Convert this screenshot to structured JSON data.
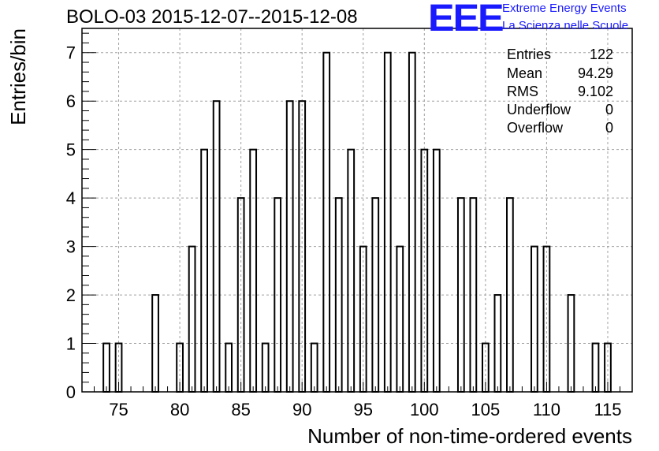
{
  "title": "BOLO-03 2015-12-07--2015-12-08",
  "logo": {
    "mark": "EEE",
    "line1": "Extreme Energy Events",
    "line2": "La Scienza nelle Scuole",
    "color": "#1a1aff"
  },
  "stats": [
    {
      "label": "Entries",
      "value": "122"
    },
    {
      "label": "Mean",
      "value": "94.29"
    },
    {
      "label": "RMS",
      "value": "9.102"
    },
    {
      "label": "Underflow",
      "value": "0"
    },
    {
      "label": "Overflow",
      "value": "0"
    }
  ],
  "chart_data": {
    "type": "bar",
    "title": "BOLO-03 2015-12-07--2015-12-08",
    "xlabel": "Number of non-time-ordered events",
    "ylabel": "Entries/bin",
    "xlim": [
      72,
      117
    ],
    "ylim": [
      0,
      7.5
    ],
    "x_ticks": [
      75,
      80,
      85,
      90,
      95,
      100,
      105,
      110,
      115
    ],
    "y_ticks": [
      0,
      1,
      2,
      3,
      4,
      5,
      6,
      7
    ],
    "grid": true,
    "bins": [
      {
        "x": 74,
        "value": 1
      },
      {
        "x": 75,
        "value": 1
      },
      {
        "x": 78,
        "value": 2
      },
      {
        "x": 80,
        "value": 1
      },
      {
        "x": 81,
        "value": 3
      },
      {
        "x": 82,
        "value": 5
      },
      {
        "x": 83,
        "value": 6
      },
      {
        "x": 84,
        "value": 1
      },
      {
        "x": 85,
        "value": 4
      },
      {
        "x": 86,
        "value": 5
      },
      {
        "x": 87,
        "value": 1
      },
      {
        "x": 88,
        "value": 4
      },
      {
        "x": 89,
        "value": 6
      },
      {
        "x": 90,
        "value": 6
      },
      {
        "x": 91,
        "value": 1
      },
      {
        "x": 92,
        "value": 7
      },
      {
        "x": 93,
        "value": 4
      },
      {
        "x": 94,
        "value": 5
      },
      {
        "x": 95,
        "value": 3
      },
      {
        "x": 96,
        "value": 4
      },
      {
        "x": 97,
        "value": 7
      },
      {
        "x": 98,
        "value": 3
      },
      {
        "x": 99,
        "value": 7
      },
      {
        "x": 100,
        "value": 5
      },
      {
        "x": 101,
        "value": 5
      },
      {
        "x": 103,
        "value": 4
      },
      {
        "x": 104,
        "value": 4
      },
      {
        "x": 105,
        "value": 1
      },
      {
        "x": 106,
        "value": 2
      },
      {
        "x": 107,
        "value": 4
      },
      {
        "x": 109,
        "value": 3
      },
      {
        "x": 110,
        "value": 3
      },
      {
        "x": 112,
        "value": 2
      },
      {
        "x": 114,
        "value": 1
      },
      {
        "x": 115,
        "value": 1
      }
    ]
  }
}
